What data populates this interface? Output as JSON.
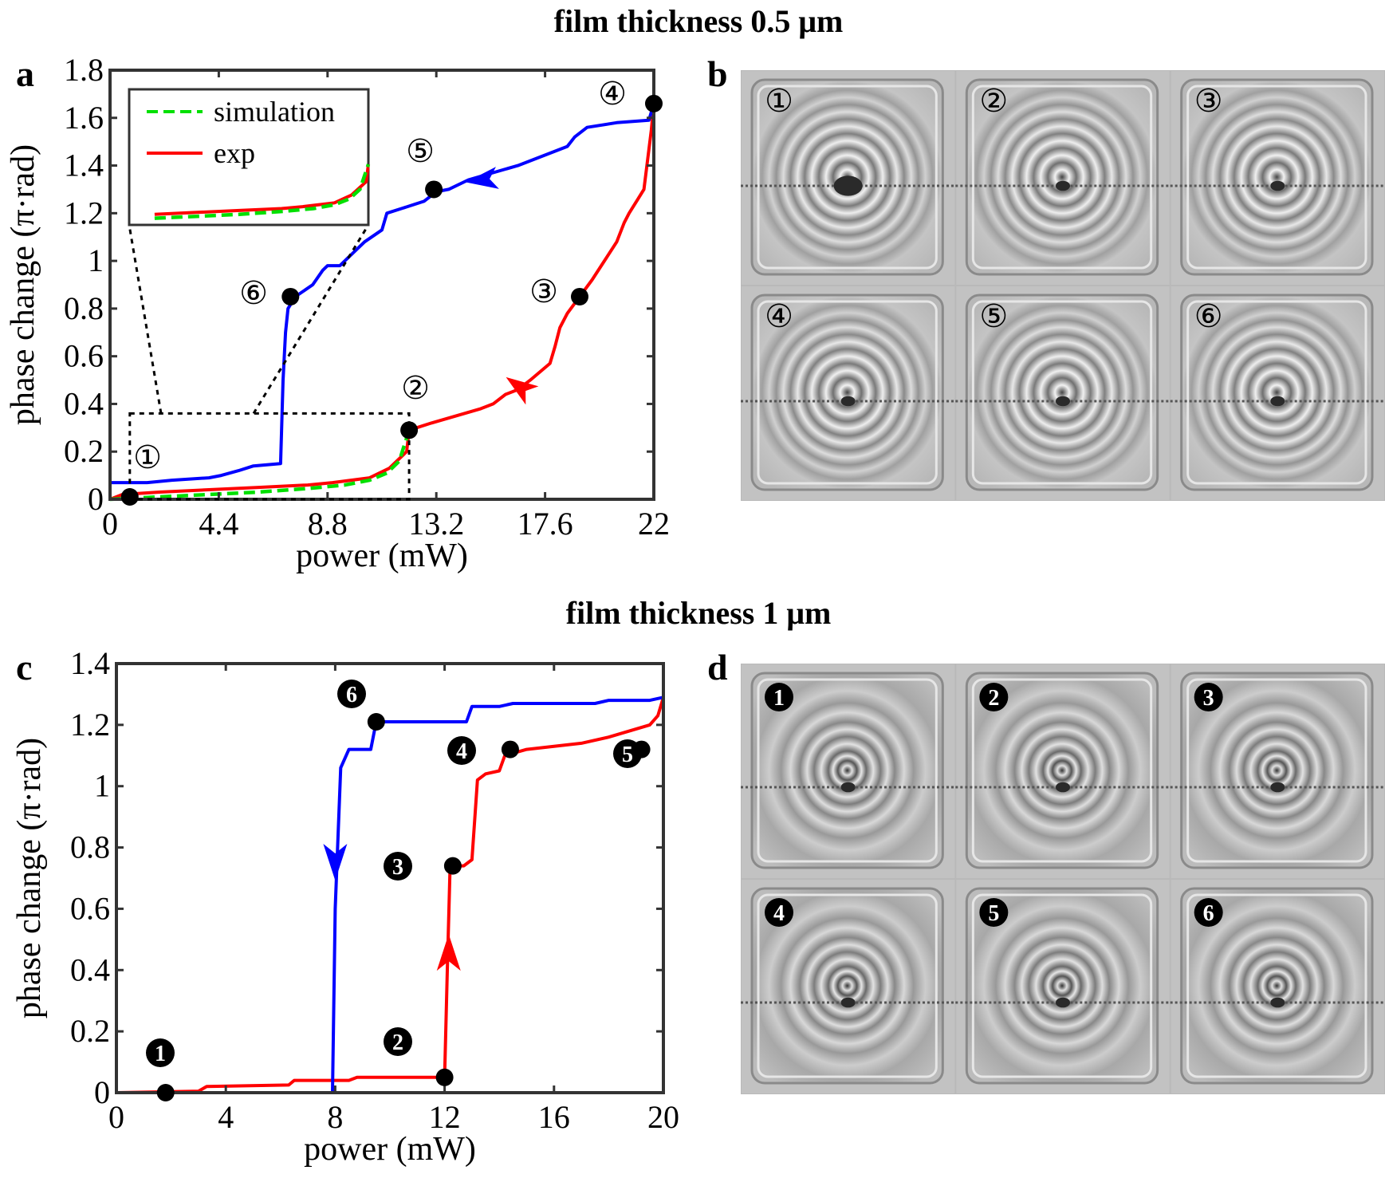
{
  "figure": {
    "title_top": "film thickness 0.5 μm",
    "title_bottom": "film thickness 1 μm",
    "panel_labels": {
      "a": "a",
      "b": "b",
      "c": "c",
      "d": "d"
    }
  },
  "colors": {
    "red": "#ff0000",
    "blue": "#0000ff",
    "green": "#00e000",
    "black": "#000000"
  },
  "chart_data": [
    {
      "panel": "a",
      "type": "line",
      "xlabel": "power (mW)",
      "ylabel": "phase change (π·rad)",
      "xlim": [
        0,
        22
      ],
      "ylim": [
        0,
        1.8
      ],
      "xticks": [
        "0",
        "4.4",
        "8.8",
        "13.2",
        "17.6",
        "22"
      ],
      "xtick_values": [
        0,
        4.4,
        8.8,
        13.2,
        17.6,
        22
      ],
      "yticks": [
        "0",
        "0.2",
        "0.4",
        "0.6",
        "0.8",
        "1",
        "1.2",
        "1.4",
        "1.6",
        "1.8"
      ],
      "ytick_values": [
        0,
        0.2,
        0.4,
        0.6,
        0.8,
        1,
        1.2,
        1.4,
        1.6,
        1.8
      ],
      "grid": false,
      "series": [
        {
          "key": "increasing",
          "color": "#ff0000",
          "points": [
            [
              0,
              0
            ],
            [
              0.5,
              0.02
            ],
            [
              2,
              0.03
            ],
            [
              4,
              0.04
            ],
            [
              6,
              0.05
            ],
            [
              8,
              0.06
            ],
            [
              9,
              0.07
            ],
            [
              10.5,
              0.09
            ],
            [
              11.3,
              0.13
            ],
            [
              12,
              0.2
            ],
            [
              12.1,
              0.29
            ],
            [
              13,
              0.32
            ],
            [
              14,
              0.35
            ],
            [
              15,
              0.38
            ],
            [
              15.5,
              0.4
            ],
            [
              16,
              0.44
            ],
            [
              16.5,
              0.46
            ],
            [
              17,
              0.5
            ],
            [
              17.8,
              0.57
            ],
            [
              18,
              0.64
            ],
            [
              18.2,
              0.72
            ],
            [
              18.5,
              0.78
            ],
            [
              19,
              0.85
            ],
            [
              19.5,
              0.92
            ],
            [
              20,
              1
            ],
            [
              20.5,
              1.08
            ],
            [
              20.8,
              1.16
            ],
            [
              21,
              1.2
            ],
            [
              21.3,
              1.25
            ],
            [
              21.6,
              1.3
            ],
            [
              21.9,
              1.55
            ],
            [
              22,
              1.66
            ]
          ]
        },
        {
          "key": "decreasing",
          "color": "#0000ff",
          "points": [
            [
              22,
              1.66
            ],
            [
              21.8,
              1.59
            ],
            [
              20.5,
              1.58
            ],
            [
              19.3,
              1.56
            ],
            [
              18.8,
              1.52
            ],
            [
              18.5,
              1.48
            ],
            [
              17.5,
              1.44
            ],
            [
              16.5,
              1.4
            ],
            [
              15.5,
              1.37
            ],
            [
              14.5,
              1.34
            ],
            [
              13.7,
              1.3
            ],
            [
              13.2,
              1.29
            ],
            [
              12.7,
              1.25
            ],
            [
              11.8,
              1.22
            ],
            [
              11.2,
              1.2
            ],
            [
              11,
              1.13
            ],
            [
              10.3,
              1.08
            ],
            [
              9.8,
              1.03
            ],
            [
              9.3,
              0.98
            ],
            [
              8.8,
              0.98
            ],
            [
              8.6,
              0.96
            ],
            [
              8.2,
              0.9
            ],
            [
              7.5,
              0.85
            ],
            [
              7.2,
              0.8
            ],
            [
              7.1,
              0.7
            ],
            [
              7,
              0.5
            ],
            [
              6.9,
              0.15
            ],
            [
              5.8,
              0.14
            ],
            [
              5.2,
              0.12
            ],
            [
              4.5,
              0.1
            ],
            [
              4,
              0.09
            ],
            [
              2.5,
              0.08
            ],
            [
              1.5,
              0.07
            ],
            [
              0,
              0.07
            ]
          ]
        },
        {
          "key": "simulation",
          "color": "#00e000",
          "dashed": true,
          "points": [
            [
              0,
              0
            ],
            [
              2,
              0.01
            ],
            [
              4,
              0.02
            ],
            [
              6,
              0.03
            ],
            [
              8,
              0.045
            ],
            [
              9.5,
              0.06
            ],
            [
              10.5,
              0.08
            ],
            [
              11.2,
              0.11
            ],
            [
              11.7,
              0.16
            ],
            [
              12.1,
              0.29
            ]
          ]
        }
      ],
      "markers": [
        {
          "label": "①",
          "x": 0.8,
          "y": 0.01
        },
        {
          "label": "②",
          "x": 12.1,
          "y": 0.29
        },
        {
          "label": "③",
          "x": 19,
          "y": 0.85
        },
        {
          "label": "④",
          "x": 22,
          "y": 1.66
        },
        {
          "label": "⑤",
          "x": 13.1,
          "y": 1.3
        },
        {
          "label": "⑥",
          "x": 7.3,
          "y": 0.85
        }
      ],
      "inset": {
        "legend": [
          {
            "label": "simulation",
            "color": "#00e000",
            "style": "dashed"
          },
          {
            "label": "exp",
            "color": "#ff0000",
            "style": "solid"
          }
        ],
        "zoom_region": {
          "x": [
            0.8,
            12.1
          ],
          "y": [
            0,
            0.36
          ]
        }
      }
    },
    {
      "panel": "c",
      "type": "line",
      "xlabel": "power (mW)",
      "ylabel": "phase change (π·rad)",
      "xlim": [
        0,
        20
      ],
      "ylim": [
        0,
        1.4
      ],
      "xticks": [
        "0",
        "4",
        "8",
        "12",
        "16",
        "20"
      ],
      "xtick_values": [
        0,
        4,
        8,
        12,
        16,
        20
      ],
      "yticks": [
        "0",
        "0.2",
        "0.4",
        "0.6",
        "0.8",
        "1",
        "1.2",
        "1.4"
      ],
      "ytick_values": [
        0,
        0.2,
        0.4,
        0.6,
        0.8,
        1,
        1.2,
        1.4
      ],
      "grid": false,
      "series": [
        {
          "key": "increasing",
          "color": "#ff0000",
          "points": [
            [
              0,
              0
            ],
            [
              3,
              0.005
            ],
            [
              3.3,
              0.02
            ],
            [
              6.3,
              0.025
            ],
            [
              6.5,
              0.04
            ],
            [
              8.5,
              0.04
            ],
            [
              8.8,
              0.05
            ],
            [
              12,
              0.05
            ],
            [
              12.1,
              0.4
            ],
            [
              12.2,
              0.74
            ],
            [
              12.7,
              0.74
            ],
            [
              13,
              0.76
            ],
            [
              13.2,
              1.02
            ],
            [
              13.5,
              1.04
            ],
            [
              14,
              1.05
            ],
            [
              14.2,
              1.1
            ],
            [
              15,
              1.12
            ],
            [
              16,
              1.13
            ],
            [
              17,
              1.14
            ],
            [
              18,
              1.16
            ],
            [
              19.5,
              1.2
            ],
            [
              19.8,
              1.23
            ],
            [
              20,
              1.29
            ]
          ]
        },
        {
          "key": "decreasing",
          "color": "#0000ff",
          "points": [
            [
              20,
              1.29
            ],
            [
              19.5,
              1.28
            ],
            [
              18,
              1.28
            ],
            [
              17.5,
              1.27
            ],
            [
              14.5,
              1.27
            ],
            [
              14,
              1.26
            ],
            [
              13,
              1.26
            ],
            [
              12.8,
              1.21
            ],
            [
              9.5,
              1.21
            ],
            [
              9.3,
              1.12
            ],
            [
              8.5,
              1.12
            ],
            [
              8.2,
              1.06
            ],
            [
              8,
              0.6
            ],
            [
              7.9,
              0
            ],
            [
              0,
              0
            ]
          ]
        }
      ],
      "markers": [
        {
          "label": "1",
          "x": 1.8,
          "y": 0
        },
        {
          "label": "2",
          "x": 12,
          "y": 0.05
        },
        {
          "label": "3",
          "x": 12.3,
          "y": 0.74
        },
        {
          "label": "4",
          "x": 14.4,
          "y": 1.12
        },
        {
          "label": "5",
          "x": 19.2,
          "y": 1.12
        },
        {
          "label": "6",
          "x": 9.5,
          "y": 1.21
        }
      ]
    }
  ],
  "image_grids": {
    "b": {
      "labels": [
        "①",
        "②",
        "③",
        "④",
        "⑤",
        "⑥"
      ]
    },
    "d": {
      "labels": [
        "1",
        "2",
        "3",
        "4",
        "5",
        "6"
      ]
    }
  }
}
